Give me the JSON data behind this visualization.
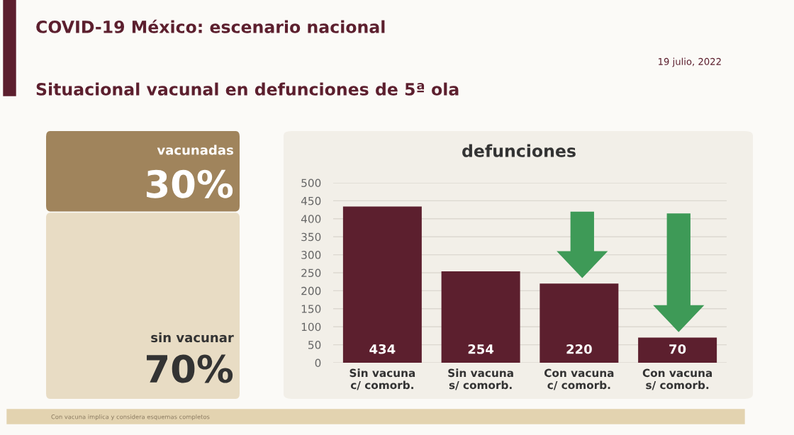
{
  "chart_data": [
    {
      "type": "other",
      "title": "COVID-19 México: escenario nacional",
      "subtitle": "Situacional vacunal en defunciones de 5ª ola",
      "annotations": [
        "19 julio, 2022",
        "vacunadas",
        "30%",
        "sin vacunar",
        "70%",
        "Con vacuna implica y considera esquemas completos"
      ]
    },
    {
      "type": "bar",
      "title": "defunciones",
      "categories": [
        "Sin vacuna\nc/ comorb.",
        "Sin vacuna\ns/ comorb.",
        "Con vacuna\nc/ comorb.",
        "Con vacuna\ns/ comorb."
      ],
      "values": [
        434,
        254,
        220,
        70
      ],
      "color": "#5c1f2e",
      "ylim": [
        0,
        500
      ],
      "yticks": [
        0,
        50,
        100,
        150,
        200,
        250,
        300,
        350,
        400,
        450,
        500
      ],
      "grid": "y",
      "data_labels": true
    }
  ]
}
